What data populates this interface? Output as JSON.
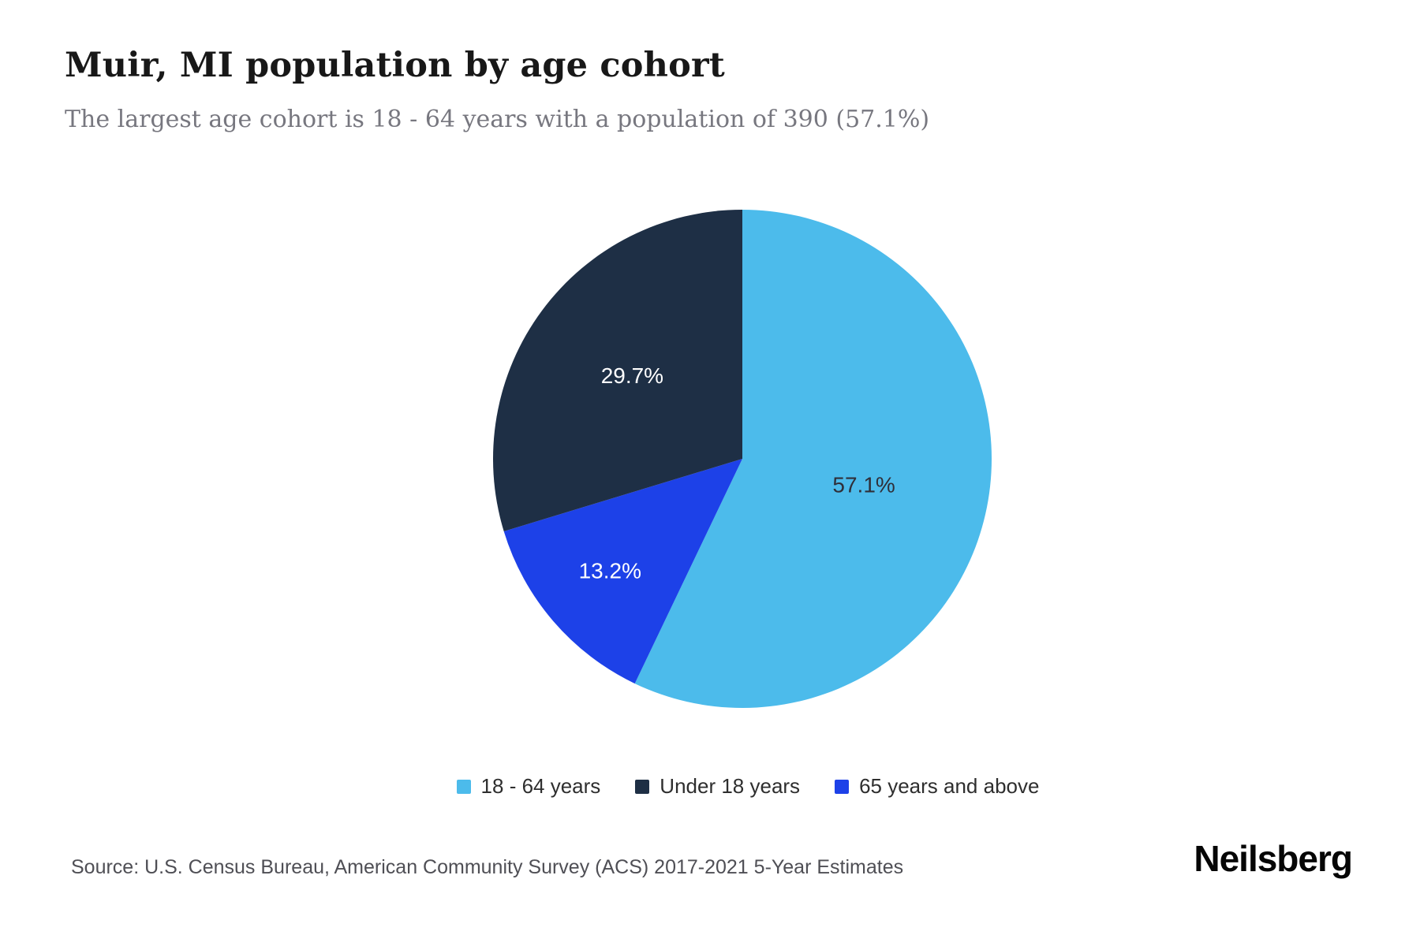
{
  "header": {
    "title": "Muir, MI population by age cohort",
    "subtitle": "The largest age cohort is 18 - 64 years with a population of 390 (57.1%)"
  },
  "chart_data": {
    "type": "pie",
    "title": "Muir, MI population by age cohort",
    "unit": "%",
    "direction": "clockwise",
    "start_angle_deg": 0,
    "legend_position": "bottom",
    "slices": [
      {
        "label": "18 - 64 years",
        "value": 57.1,
        "color": "#4CBBEB",
        "text_color": "#2f2f39"
      },
      {
        "label": "65 years and above",
        "value": 13.2,
        "color": "#1D41E8",
        "text_color": "#ffffff"
      },
      {
        "label": "Under 18 years",
        "value": 29.7,
        "color": "#1E2F45",
        "text_color": "#ffffff"
      }
    ],
    "legend": [
      {
        "label": "18 - 64 years",
        "color": "#4CBBEB"
      },
      {
        "label": "Under 18 years",
        "color": "#1E2F45"
      },
      {
        "label": "65 years and above",
        "color": "#1D41E8"
      }
    ],
    "largest_cohort": {
      "label": "18 - 64 years",
      "population": 390,
      "percent": 57.1
    }
  },
  "footer": {
    "source": "Source: U.S. Census Bureau, American Community Survey (ACS) 2017-2021 5-Year Estimates",
    "brand": "Neilsberg"
  }
}
